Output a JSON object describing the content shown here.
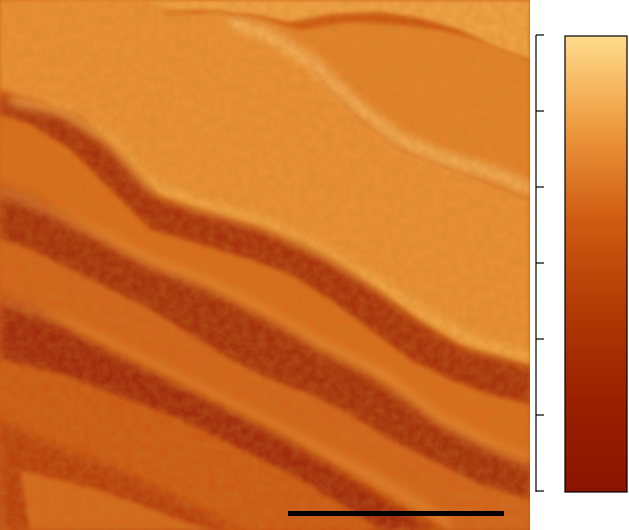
{
  "image": {
    "subject": "microscopy-height-map",
    "palette": [
      "#8a1400",
      "#a52a00",
      "#c44c08",
      "#d96a18",
      "#e98a2c",
      "#f5b050",
      "#ffd98a"
    ]
  },
  "colorbar": {
    "tick_count": 6,
    "tick_labels": []
  },
  "scale_bar": {
    "label": "",
    "color": "#000000"
  }
}
